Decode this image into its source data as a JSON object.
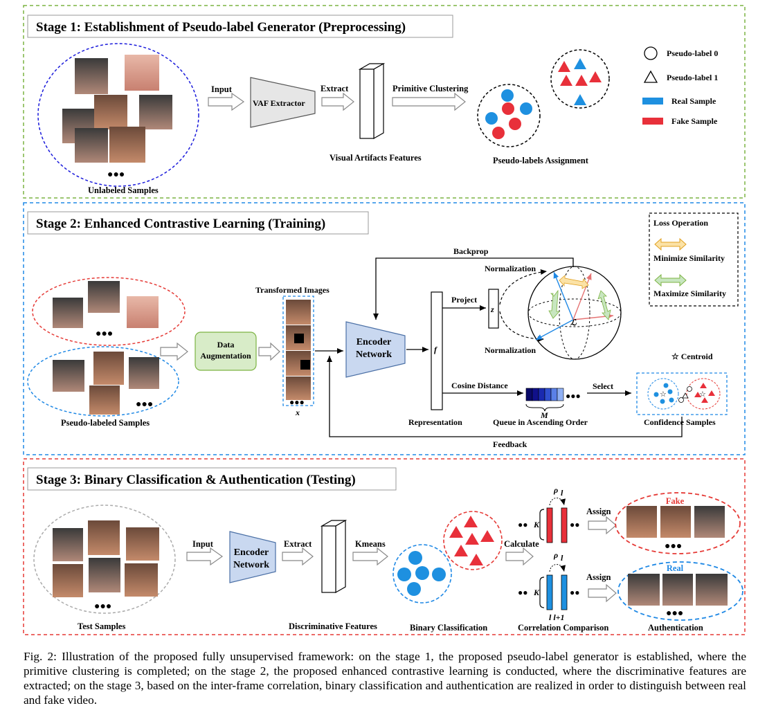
{
  "stage1": {
    "title": "Stage 1: Establishment of Pseudo-label Generator (Preprocessing)",
    "unlabeled_samples": "Unlabeled Samples",
    "input": "Input",
    "extractor": "VAF Extractor",
    "extract": "Extract",
    "visual_features": "Visual Artifacts Features",
    "primitive_clustering": "Primitive Clustering",
    "assignment": "Pseudo-labels Assignment",
    "legend": {
      "pseudo0": "Pseudo-label 0",
      "pseudo1": "Pseudo-label 1",
      "real": "Real Sample",
      "fake": "Fake Sample"
    },
    "ellipsis": "●●●"
  },
  "stage2": {
    "title": "Stage 2: Enhanced Contrastive Learning (Training)",
    "pseudo_labeled": "Pseudo-labeled Samples",
    "augmentation_line1": "Data",
    "augmentation_line2": "Augmentation",
    "transformed": "Transformed Images",
    "x": "x",
    "encoder_line1": "Encoder",
    "encoder_line2": "Network",
    "f": "f",
    "representation": "Representation",
    "backprop": "Backprop",
    "project": "Project",
    "z": "z",
    "normalization_top": "Normalization",
    "normalization_bottom": "Normalization",
    "loss_symbol": "ℒ",
    "cosine": "Cosine Distance",
    "m": "M",
    "queue": "Queue in Ascending Order",
    "select": "Select",
    "confidence": "Confidence Samples",
    "centroid": "☆ Centroid",
    "feedback": "Feedback",
    "loss_box": {
      "title": "Loss Operation",
      "minimize": "Minimize Similarity",
      "maximize": "Maximize Similarity"
    },
    "ellipsis": "●●●"
  },
  "stage3": {
    "title": "Stage 3: Binary Classification & Authentication (Testing)",
    "test_samples": "Test Samples",
    "input": "Input",
    "encoder_line1": "Encoder",
    "encoder_line2": "Network",
    "extract": "Extract",
    "discriminative": "Discriminative Features",
    "kmeans": "Kmeans",
    "binary": "Binary Classification",
    "calculate": "Calculate",
    "rho": "ρ",
    "rho_sub": "l",
    "k": "K",
    "l_labels": "l  l+1",
    "correlation": "Correlation Comparison",
    "assign": "Assign",
    "fake": "Fake",
    "real": "Real",
    "authentication": "Authentication",
    "ellipsis": "●●●",
    "dots2": "●●"
  },
  "colors": {
    "stage1_border": "#7cb342",
    "stage2_border": "#1e88e5",
    "stage3_border": "#e53935",
    "real_blue": "#1e90e0",
    "fake_red": "#e8303a",
    "encoder_fill": "#c9d8f0",
    "augment_fill": "#d8ecc8"
  },
  "caption": "Fig. 2: Illustration of the proposed fully unsupervised framework: on the stage 1, the proposed pseudo-label generator is established, where the primitive clustering is completed; on the stage 2, the proposed enhanced contrastive learning is conducted, where the discriminative features are extracted; on the stage 3, based on the inter-frame correlation, binary classification and authentication are realized in order to distinguish between real and fake video."
}
